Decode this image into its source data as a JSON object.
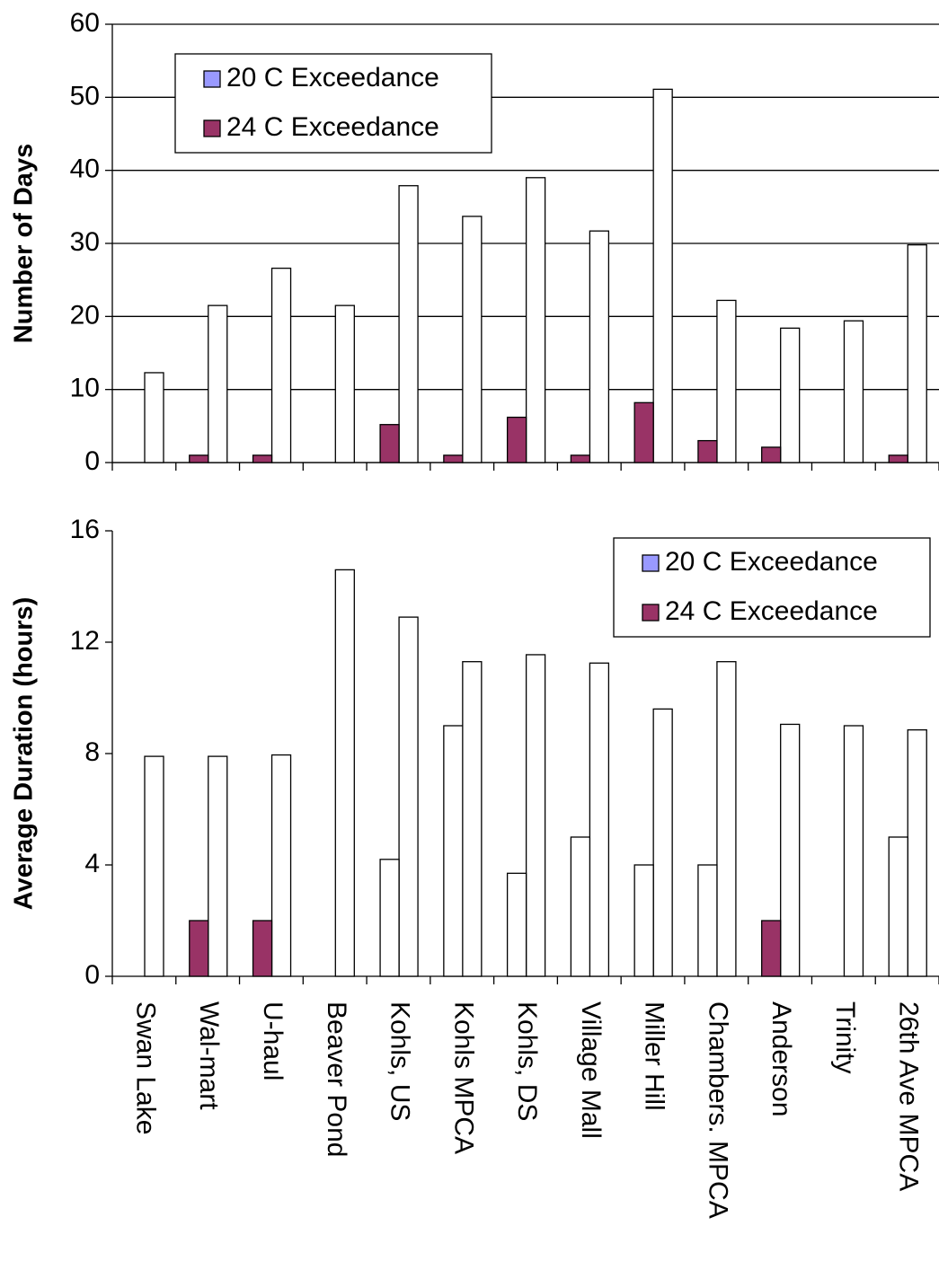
{
  "chart_data": [
    {
      "type": "bar",
      "y_label": "Number of Days",
      "series": [
        {
          "name": "20 C Exceedance",
          "color": "#9999ff",
          "bar_colors": [
            "#ffffff",
            "#ffffff",
            "#ffffff",
            "#ffffff",
            "#ffffff",
            "#ffffff",
            "#ffffff",
            "#ffffff",
            "#ffffff",
            "#ffffff",
            "#ffffff",
            "#ffffff",
            "#ffffff"
          ],
          "values": [
            12.3,
            21.5,
            26.6,
            21.5,
            37.9,
            33.7,
            39,
            31.7,
            51.1,
            22.2,
            18.4,
            19.4,
            29.8
          ]
        },
        {
          "name": "24 C Exceedance",
          "color": "#993366",
          "bar_colors": [
            "#993366",
            "#993366",
            "#993366",
            "#993366",
            "#993366",
            "#993366",
            "#993366",
            "#993366",
            "#993366",
            "#993366",
            "#993366",
            "#993366",
            "#993366"
          ],
          "values": [
            0,
            1,
            1,
            0,
            5.2,
            1,
            6.2,
            1,
            8.2,
            3,
            2.1,
            0,
            1
          ]
        }
      ],
      "ylim": [
        0,
        60
      ],
      "yticks": [
        0,
        10,
        20,
        30,
        40,
        50,
        60
      ],
      "grid": true,
      "legend_position": "upper left"
    },
    {
      "type": "bar",
      "y_label": "Average Duration (hours)",
      "categories": [
        "Swan Lake",
        "Wal-mart",
        "U-haul",
        "Beaver Pond",
        "Kohls, US",
        "Kohls MPCA",
        "Kohls, DS",
        "Village Mall",
        "Miller Hill",
        "Chambers. MPCA",
        "Anderson",
        "Trinity",
        "26th Ave MPCA"
      ],
      "series": [
        {
          "name": "20 C Exceedance",
          "color": "#9999ff",
          "bar_colors": [
            "#ffffff",
            "#ffffff",
            "#ffffff",
            "#ffffff",
            "#ffffff",
            "#ffffff",
            "#ffffff",
            "#ffffff",
            "#ffffff",
            "#ffffff",
            "#ffffff",
            "#ffffff",
            "#ffffff"
          ],
          "values": [
            7.9,
            7.9,
            7.95,
            14.6,
            12.9,
            11.3,
            11.55,
            11.25,
            9.6,
            11.3,
            9.05,
            9,
            8.85
          ]
        },
        {
          "name": "24 C Exceedance",
          "color": "#993366",
          "bar_colors": [
            "#ffffff",
            "#993366",
            "#993366",
            "#ffffff",
            "#ffffff",
            "#ffffff",
            "#ffffff",
            "#ffffff",
            "#ffffff",
            "#ffffff",
            "#993366",
            "#ffffff",
            "#ffffff"
          ],
          "values": [
            0,
            2,
            2,
            0,
            4.2,
            9,
            3.7,
            5,
            4,
            4,
            2,
            0,
            5
          ]
        }
      ],
      "ylim": [
        0,
        16
      ],
      "yticks": [
        0,
        4,
        8,
        12,
        16
      ],
      "grid": false,
      "legend_position": "upper right"
    }
  ]
}
